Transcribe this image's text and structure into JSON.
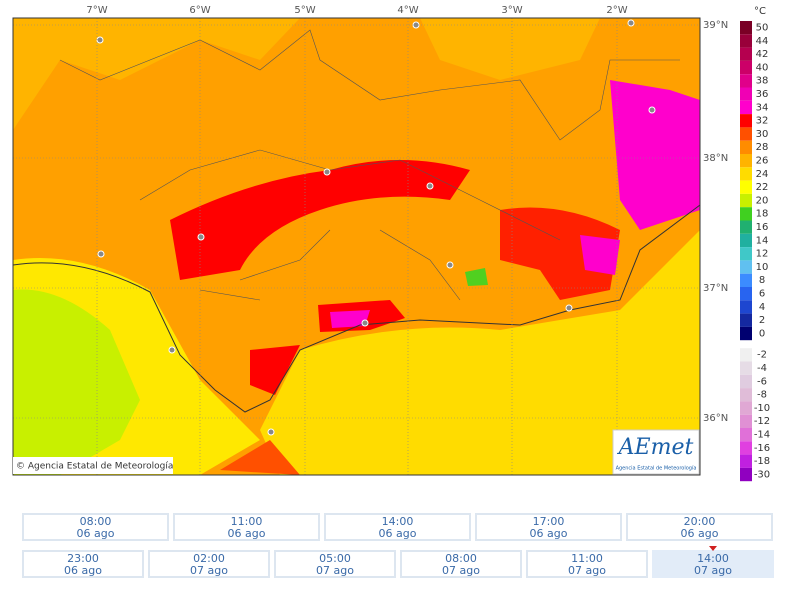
{
  "map": {
    "longitude_labels": [
      "7°W",
      "6°W",
      "5°W",
      "4°W",
      "3°W",
      "2°W"
    ],
    "latitude_labels": [
      "39°N",
      "38°N",
      "37°N",
      "36°N"
    ],
    "copyright": "© Agencia Estatal de Meteorología",
    "logo": {
      "name": "AEmet",
      "subtitle": "Agencia Estatal de Meteorología"
    }
  },
  "legend": {
    "unit": "°C",
    "entries": [
      {
        "value": 50,
        "color": "#7a0025"
      },
      {
        "value": 44,
        "color": "#99003a"
      },
      {
        "value": 42,
        "color": "#b5004f"
      },
      {
        "value": 40,
        "color": "#cc0068"
      },
      {
        "value": 38,
        "color": "#e0008a"
      },
      {
        "value": 36,
        "color": "#f000b4"
      },
      {
        "value": 34,
        "color": "#ff00cc"
      },
      {
        "value": 32,
        "color": "#ff0000"
      },
      {
        "value": 30,
        "color": "#ff5000"
      },
      {
        "value": 28,
        "color": "#ff8c00"
      },
      {
        "value": 26,
        "color": "#ffb400"
      },
      {
        "value": 24,
        "color": "#ffdc00"
      },
      {
        "value": 22,
        "color": "#ffff00"
      },
      {
        "value": 20,
        "color": "#c8f000"
      },
      {
        "value": 18,
        "color": "#40d020"
      },
      {
        "value": 16,
        "color": "#20b070"
      },
      {
        "value": 14,
        "color": "#20b0a0"
      },
      {
        "value": 12,
        "color": "#40c8c8"
      },
      {
        "value": 10,
        "color": "#60c0f0"
      },
      {
        "value": 8,
        "color": "#3c8cff"
      },
      {
        "value": 6,
        "color": "#2864f0"
      },
      {
        "value": 4,
        "color": "#1e46d0"
      },
      {
        "value": 2,
        "color": "#1428a0"
      },
      {
        "value": 0,
        "color": "#000070"
      },
      {
        "value": -2,
        "color": "#f0f0f0"
      },
      {
        "value": -4,
        "color": "#e6dce6"
      },
      {
        "value": -6,
        "color": "#e0cce0"
      },
      {
        "value": -8,
        "color": "#e0bcd8"
      },
      {
        "value": -10,
        "color": "#e0a8d4"
      },
      {
        "value": -12,
        "color": "#e090d4"
      },
      {
        "value": -14,
        "color": "#e070d8"
      },
      {
        "value": -16,
        "color": "#e040e0"
      },
      {
        "value": -18,
        "color": "#c020e0"
      },
      {
        "value": -30,
        "color": "#9000c0"
      }
    ]
  },
  "times": {
    "row1": [
      {
        "time": "08:00",
        "date": "06 ago"
      },
      {
        "time": "11:00",
        "date": "06 ago"
      },
      {
        "time": "14:00",
        "date": "06 ago"
      },
      {
        "time": "17:00",
        "date": "06 ago"
      },
      {
        "time": "20:00",
        "date": "06 ago"
      }
    ],
    "row2": [
      {
        "time": "23:00",
        "date": "06 ago"
      },
      {
        "time": "02:00",
        "date": "07 ago"
      },
      {
        "time": "05:00",
        "date": "07 ago"
      },
      {
        "time": "08:00",
        "date": "07 ago"
      },
      {
        "time": "11:00",
        "date": "07 ago"
      },
      {
        "time": "14:00",
        "date": "07 ago"
      }
    ]
  }
}
